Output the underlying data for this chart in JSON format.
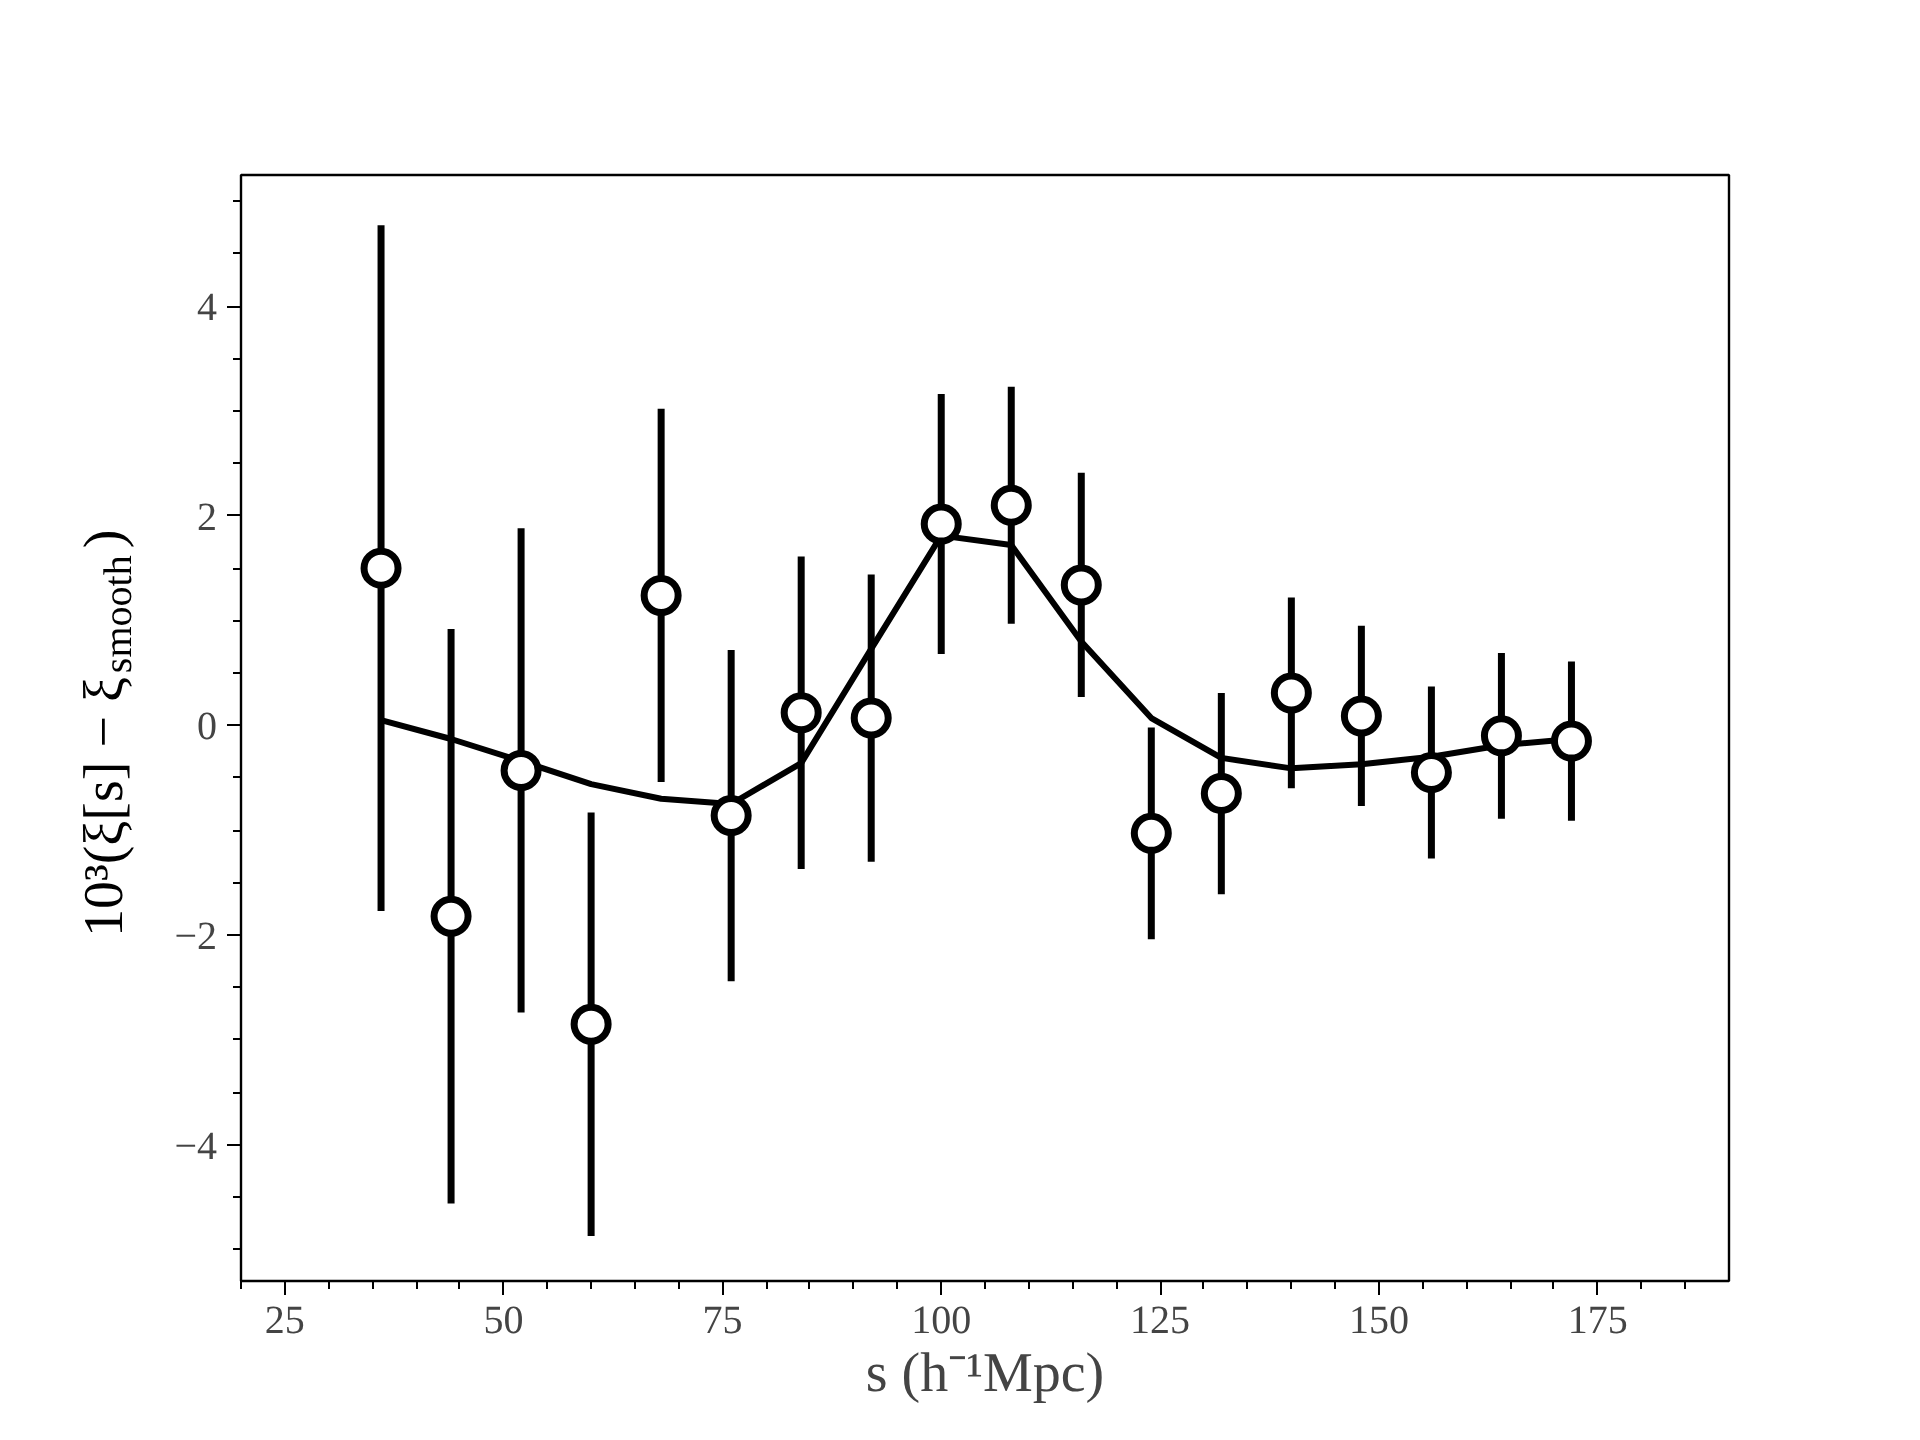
{
  "chart_data": {
    "type": "scatter",
    "xlabel": "s (h⁻¹Mpc)",
    "ylabel": "10³(ξ[s] − ξ$_{smooth}$)",
    "xlim": [
      20,
      190
    ],
    "xticks": [
      25,
      50,
      75,
      100,
      125,
      150,
      175
    ],
    "ylim": [
      -5.3,
      5.25
    ],
    "yticks": [
      {
        "value": -4,
        "label": "−4"
      },
      {
        "value": -2,
        "label": "−2"
      },
      0,
      2,
      4
    ],
    "grid": false,
    "series": [
      {
        "type": "line",
        "marker": "none",
        "color": "#000000",
        "x": [
          36,
          44,
          52,
          60,
          68,
          76,
          84,
          92,
          100,
          108,
          116,
          124,
          132,
          140,
          148,
          156,
          164,
          172
        ],
        "values": [
          0.05,
          -0.13,
          -0.34,
          -0.56,
          -0.7,
          -0.75,
          -0.36,
          0.73,
          1.81,
          1.72,
          0.8,
          0.07,
          -0.31,
          -0.41,
          -0.37,
          -0.3,
          -0.19,
          -0.13
        ]
      },
      {
        "marker": "circle",
        "color": "#000000",
        "x": [
          36,
          44,
          52,
          60,
          68,
          76,
          84,
          92,
          100,
          108,
          116,
          124,
          132,
          140,
          148,
          156,
          164,
          172
        ],
        "values": [
          1.5,
          -1.82,
          -0.43,
          -2.85,
          1.24,
          -0.86,
          0.12,
          0.07,
          1.92,
          2.1,
          1.34,
          -1.03,
          -0.65,
          0.31,
          0.09,
          -0.45,
          -0.1,
          -0.15
        ],
        "errors": [
          3.27,
          2.74,
          2.31,
          2.02,
          1.78,
          1.58,
          1.49,
          1.37,
          1.24,
          1.13,
          1.07,
          1.01,
          0.96,
          0.91,
          0.86,
          0.82,
          0.79,
          0.76
        ]
      }
    ]
  }
}
